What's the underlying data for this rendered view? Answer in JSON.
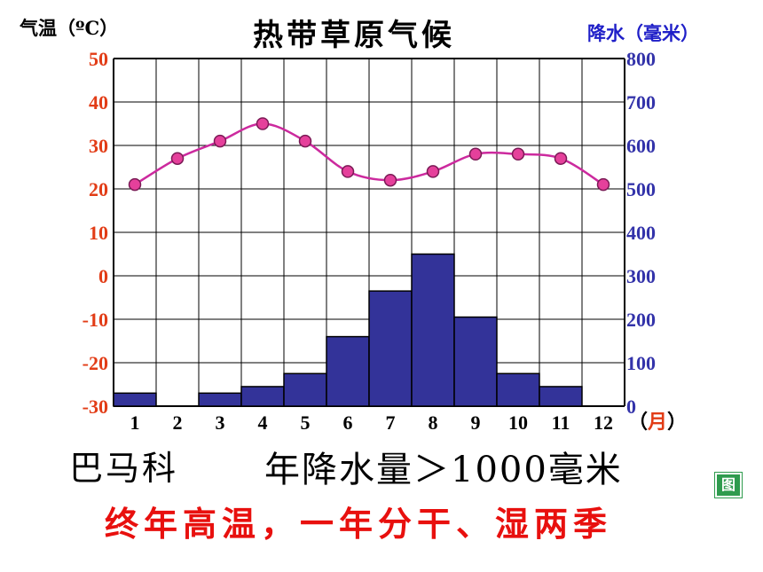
{
  "title": "热带草原气候",
  "left_axis_label": "气温（ºC）",
  "right_axis_label": "降水（毫米）",
  "left_ticks": [
    "50",
    "40",
    "30",
    "20",
    "10",
    "0",
    "-10",
    "-20",
    "-30"
  ],
  "right_ticks": [
    "800",
    "700",
    "600",
    "500",
    "400",
    "300",
    "200",
    "100",
    "0"
  ],
  "month_labels": [
    "1",
    "2",
    "3",
    "4",
    "5",
    "6",
    "7",
    "8",
    "9",
    "10",
    "11",
    "12"
  ],
  "month_unit_open": "（",
  "month_unit_char": "月",
  "month_unit_close": "）",
  "station_name": "巴马科",
  "annual_precip_text": "年降水量＞1000毫米",
  "summary_text": "终年高温，一年分干、湿两季",
  "diagram_button_label": "图",
  "colors": {
    "temperature_line": "#cc2a9e",
    "temperature_marker": "#e5409b",
    "precip_bar": "#333399",
    "left_axis_text": "#e23c16",
    "right_axis_text": "#3333aa",
    "summary_text": "#e8100e"
  },
  "chart_data": {
    "type": "bar",
    "categories": [
      "1",
      "2",
      "3",
      "4",
      "5",
      "6",
      "7",
      "8",
      "9",
      "10",
      "11",
      "12"
    ],
    "series": [
      {
        "values": [
          30,
          0,
          30,
          45,
          75,
          160,
          265,
          350,
          205,
          75,
          45,
          0
        ]
      },
      {
        "values": [
          21,
          27,
          31,
          35,
          31,
          24,
          22,
          24,
          28,
          28,
          27,
          21
        ]
      }
    ],
    "ylim_left": [
      -30,
      50
    ],
    "ylim_right": [
      0,
      800
    ],
    "xlabel": "（月）",
    "ylabel_left": "气温（ºC）",
    "ylabel_right": "降水（毫米）",
    "title": "热带草原气候",
    "grid": true
  }
}
